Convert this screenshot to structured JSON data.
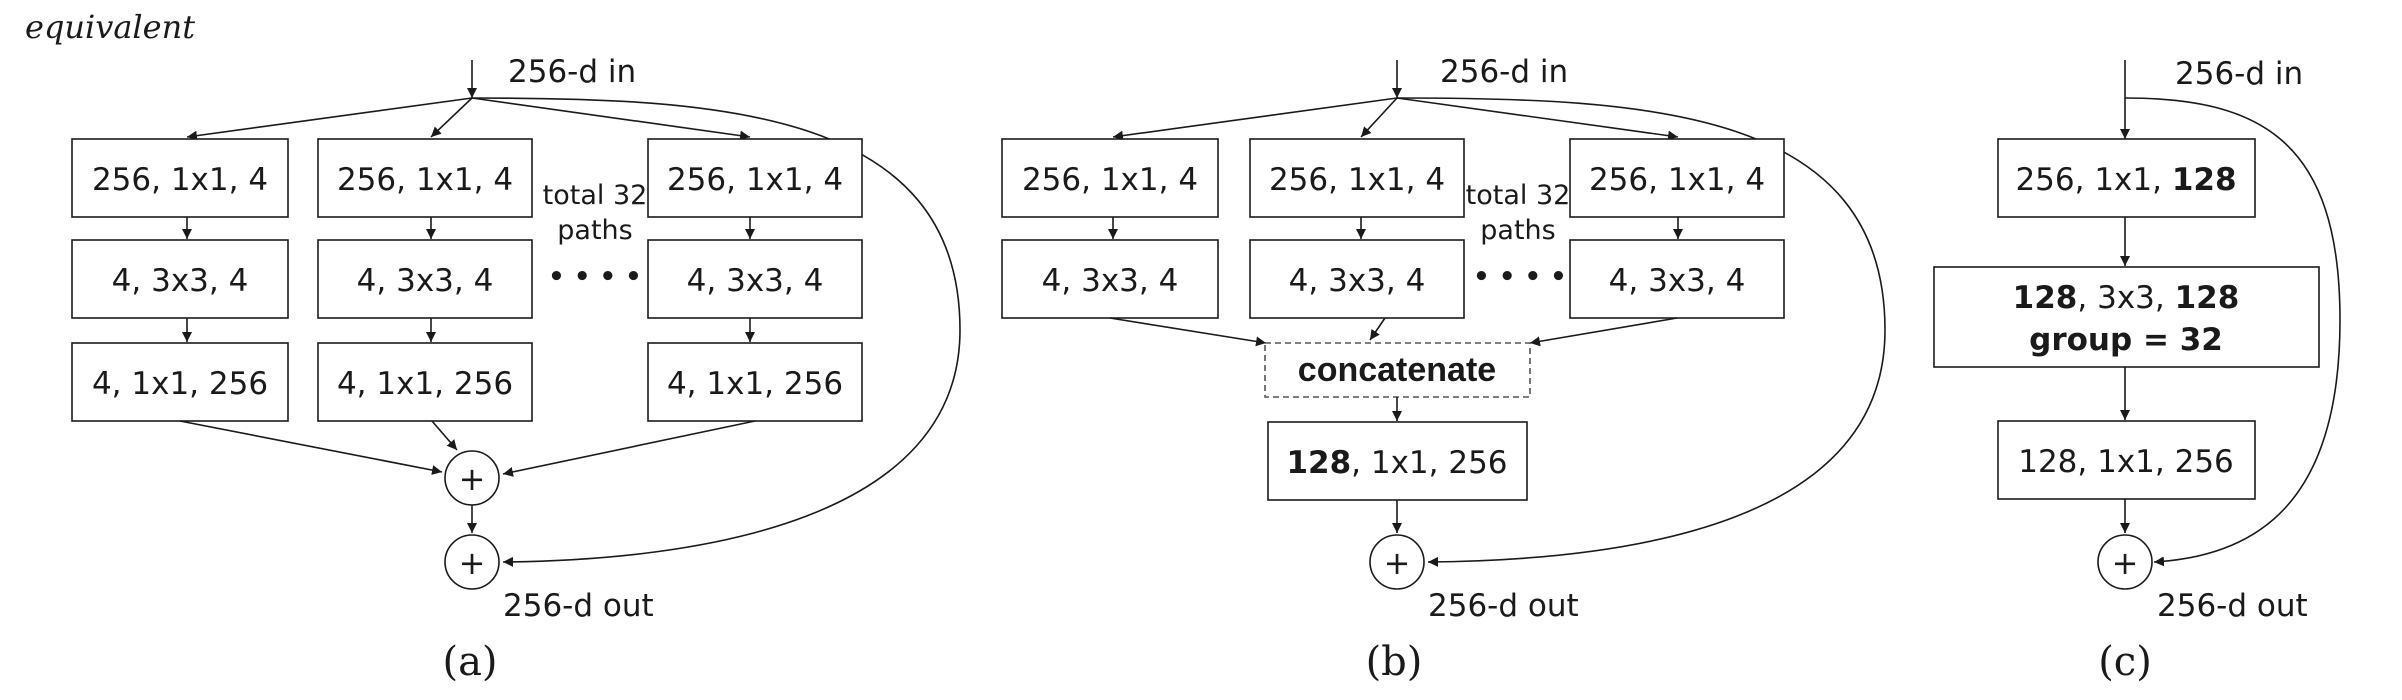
{
  "header_text": "equivalent",
  "a": {
    "input_label": "256-d in",
    "output_label": "256-d out",
    "paths_note": [
      "total 32",
      "paths"
    ],
    "ellipsis": "• • • •",
    "sum_symbol": "+",
    "caption": "(a)",
    "col1": [
      "256, 1x1, 4",
      "4, 3x3, 4",
      "4, 1x1, 256"
    ],
    "col2": [
      "256, 1x1, 4",
      "4, 3x3, 4",
      "4, 1x1, 256"
    ],
    "col3": [
      "256, 1x1, 4",
      "4, 3x3, 4",
      "4, 1x1, 256"
    ]
  },
  "b": {
    "input_label": "256-d in",
    "output_label": "256-d out",
    "paths_note": [
      "total 32",
      "paths"
    ],
    "ellipsis": "• • • •",
    "sum_symbol": "+",
    "caption": "(b)",
    "col1": [
      "256, 1x1, 4",
      "4, 3x3, 4"
    ],
    "col2": [
      "256, 1x1, 4",
      "4, 3x3, 4"
    ],
    "col3": [
      "256, 1x1, 4",
      "4, 3x3, 4"
    ],
    "concat": "concatenate",
    "final": {
      "bold": "128",
      "rest": ", 1x1, 256"
    }
  },
  "c": {
    "input_label": "256-d in",
    "output_label": "256-d out",
    "sum_symbol": "+",
    "caption": "(c)",
    "box1": {
      "plain": "256, 1x1, ",
      "bold": "128"
    },
    "box2": {
      "bold1": "128",
      "mid": ", 3x3, ",
      "bold2": "128",
      "line2": "group = 32"
    },
    "box3": "128, 1x1, 256"
  }
}
